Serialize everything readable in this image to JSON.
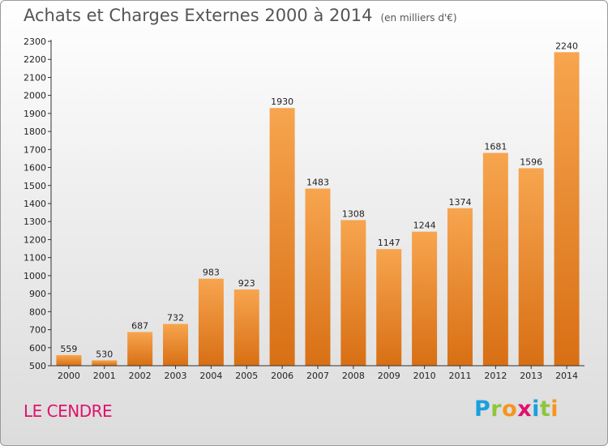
{
  "title": "Achats et Charges Externes 2000 à 2014",
  "unit": "(en milliers d'€)",
  "commune": "LE CENDRE",
  "brand": {
    "letters": [
      "P",
      "r",
      "o",
      "x",
      "i",
      "t",
      "i"
    ],
    "colors": [
      "#1aa0dc",
      "#8cc63f",
      "#f7941d",
      "#e0116e",
      "#1aa0dc",
      "#8cc63f",
      "#f7941d"
    ]
  },
  "colors": {
    "bar_light": "#f7a54f",
    "bar_dark": "#d86f14"
  },
  "chart_data": {
    "type": "bar",
    "title": "Achats et Charges Externes 2000 à 2014",
    "categories": [
      "2000",
      "2001",
      "2002",
      "2003",
      "2004",
      "2005",
      "2006",
      "2007",
      "2008",
      "2009",
      "2010",
      "2011",
      "2012",
      "2013",
      "2014"
    ],
    "values": [
      559,
      530,
      687,
      732,
      983,
      923,
      1930,
      1483,
      1308,
      1147,
      1244,
      1374,
      1681,
      1596,
      2240
    ],
    "ylim": [
      500,
      2300
    ],
    "yticks": [
      500,
      600,
      700,
      800,
      900,
      1000,
      1100,
      1200,
      1300,
      1400,
      1500,
      1600,
      1700,
      1800,
      1900,
      2000,
      2100,
      2200,
      2300
    ],
    "grid": false,
    "xlabel": "",
    "ylabel": ""
  }
}
